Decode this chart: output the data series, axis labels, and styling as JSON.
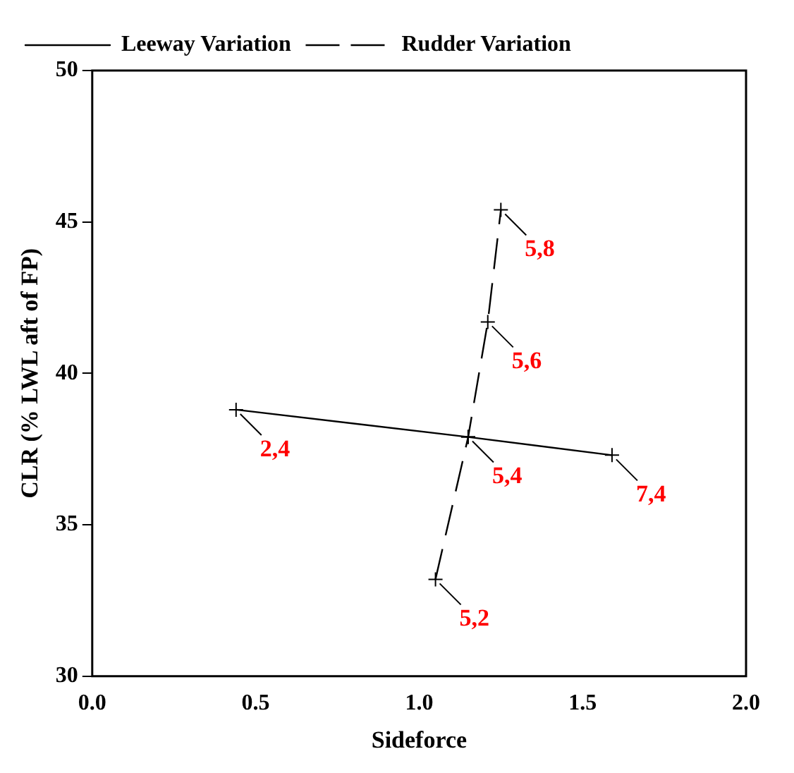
{
  "chart_data": {
    "type": "line",
    "xlabel": "Sideforce",
    "ylabel": "CLR (% LWL aft of FP)",
    "series": [
      {
        "name": "Leeway Variation",
        "color": "#000000",
        "line_style": "solid",
        "x": [
          0.44,
          1.15,
          1.59
        ],
        "values": [
          38.8,
          37.9,
          37.3
        ]
      },
      {
        "name": "Rudder Variation",
        "color": "#000000",
        "line_style": "dashed",
        "x": [
          1.05,
          1.15,
          1.21,
          1.25
        ],
        "values": [
          33.2,
          37.9,
          41.7,
          45.4
        ]
      }
    ],
    "marker": "cross",
    "legend": "top left",
    "grid": false,
    "xlim": [
      0,
      2
    ],
    "xticks": [
      {
        "value": 0,
        "label": "0.0"
      },
      {
        "value": 0.5,
        "label": "0.5"
      },
      {
        "value": 1,
        "label": "1.0"
      },
      {
        "value": 1.5,
        "label": "1.5"
      },
      {
        "value": 2,
        "label": "2.0"
      }
    ],
    "ylim": [
      30,
      50
    ],
    "yticks": [
      30,
      35,
      40,
      45,
      50
    ],
    "annotations": [
      {
        "text": "2,4",
        "x": 0.44,
        "y": 38.8
      },
      {
        "text": "5,4",
        "x": 1.15,
        "y": 37.9
      },
      {
        "text": "7,4",
        "x": 1.59,
        "y": 37.3
      },
      {
        "text": "5,2",
        "x": 1.05,
        "y": 33.2
      },
      {
        "text": "5,6",
        "x": 1.21,
        "y": 41.7
      },
      {
        "text": "5,8",
        "x": 1.25,
        "y": 45.4
      }
    ]
  }
}
